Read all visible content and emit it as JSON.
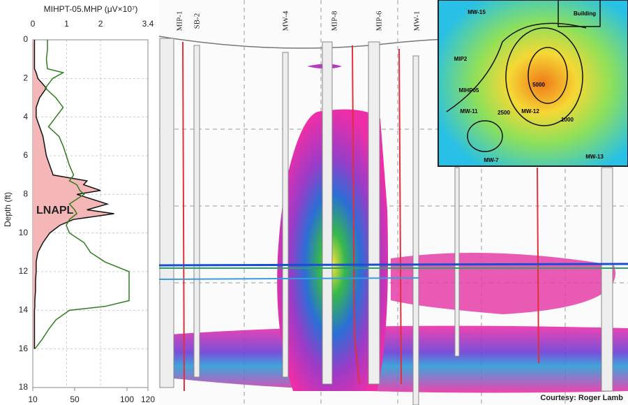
{
  "chart_data": {
    "type": "line",
    "title": "MIHPT-05.MHP (μV×10⁷)",
    "ylabel": "Depth (ft)",
    "annotation": "LNAPL",
    "depths": [
      0,
      0.5,
      1,
      1.5,
      1.7,
      2,
      2.5,
      3,
      3.5,
      4,
      4.5,
      5,
      5.5,
      6,
      6.5,
      7,
      7.3,
      7.5,
      7.8,
      8,
      8.5,
      8.8,
      9,
      9.3,
      9.6,
      10,
      10.5,
      11,
      11.5,
      12,
      12.5,
      13,
      13.5,
      13.8,
      14,
      14.5,
      15,
      15.5,
      16
    ],
    "series": [
      {
        "color": "#111111",
        "fill": "#f4b6b6",
        "values": [
          0.05,
          0.05,
          0.05,
          0.05,
          0.1,
          0.15,
          0.4,
          0.2,
          0.1,
          0.1,
          0.2,
          0.3,
          0.35,
          0.4,
          0.5,
          0.6,
          1.6,
          1.5,
          2.0,
          1.3,
          2.2,
          1.6,
          2.4,
          1.2,
          0.8,
          0.5,
          0.3,
          0.15,
          0.1,
          0.1,
          0.08,
          0.08,
          0.06,
          0.06,
          0.05,
          0.05,
          0.05,
          0.05,
          0.05
        ]
      },
      {
        "color": "#2e7d1e",
        "axis": "x2",
        "values": [
          24,
          24,
          23,
          24,
          39,
          29,
          22,
          32,
          39,
          32,
          25,
          35,
          39,
          42,
          45,
          49,
          45,
          52,
          55,
          59,
          45,
          50,
          52,
          45,
          42,
          45,
          59,
          65,
          79,
          102,
          102,
          102,
          102,
          79,
          45,
          32,
          25,
          19,
          12
        ]
      }
    ],
    "xlim": [
      0,
      3.4
    ],
    "xticks": [
      0,
      1,
      2,
      3.4
    ],
    "x2lim": [
      10,
      120
    ],
    "x2ticks": [
      10,
      50,
      100,
      120
    ],
    "ylim": [
      0,
      18
    ],
    "yticks": [
      0,
      2,
      4,
      6,
      8,
      10,
      12,
      14,
      16,
      18
    ],
    "grid": true
  },
  "cross_section": {
    "wells": [
      "MIP-1",
      "SB-2",
      "MW-4",
      "MIP-8",
      "MIP-6",
      "MW-1"
    ],
    "credit": "Courtesy: Roger Lamb"
  },
  "map": {
    "labels": [
      "MW-15",
      "Building",
      "MIP2",
      "MIHP05",
      "MW-11",
      "MW-12",
      "MW-7",
      "MW-13",
      "2500",
      "5000",
      "1000"
    ]
  }
}
